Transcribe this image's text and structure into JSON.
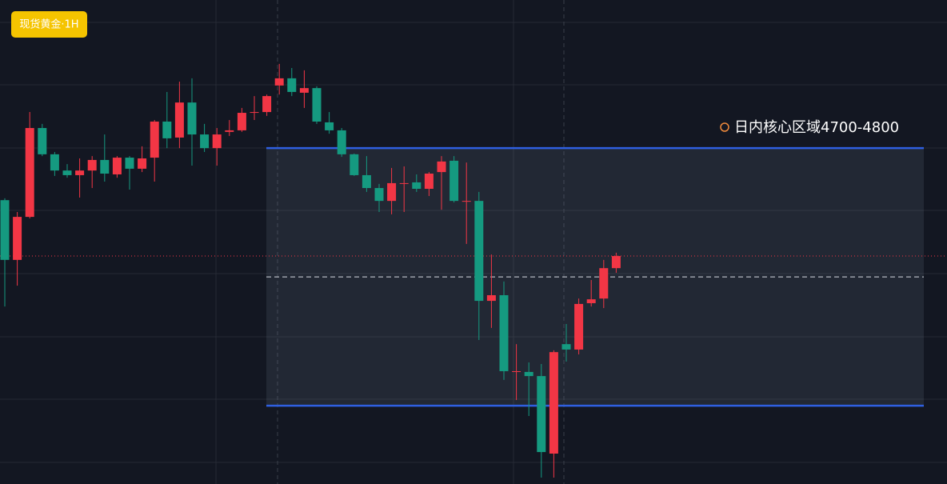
{
  "chart_data": {
    "type": "candlestick",
    "title": "现货黄金·1H",
    "annotation": "日内核心区域4700-4800",
    "ylim": [
      4669.6,
      4857.5
    ],
    "zone": [
      4700,
      4800
    ],
    "zone_line_color": "#2f5fe0",
    "midline": 4750,
    "last_price": 4758.1,
    "up_color": "#f23645",
    "down_color": "#159a80",
    "open": [
      4779.8,
      4756.6,
      4773.3,
      4807.8,
      4797.6,
      4791.3,
      4789.5,
      4791.3,
      4795.4,
      4789.8,
      4796.3,
      4792.0,
      4796.3,
      4810.3,
      4804.1,
      4817.7,
      4805.3,
      4800.0,
      4806.3,
      4806.9,
      4813.7,
      4814.0,
      4824.3,
      4827.1,
      4821.5,
      4823.3,
      4810.0,
      4806.9,
      4797.6,
      4789.5,
      4784.5,
      4779.5,
      4786.1,
      4786.7,
      4784.2,
      4790.7,
      4795.1,
      4779.2,
      4779.5,
      4740.7,
      4742.9,
      4713.1,
      4713.1,
      4711.5,
      4681.4,
      4723.9,
      4721.8,
      4739.8,
      4741.6,
      4753.4
    ],
    "high": [
      4780.5,
      4775.2,
      4814.0,
      4809.4,
      4798.5,
      4793.8,
      4796.0,
      4796.9,
      4805.3,
      4796.9,
      4796.9,
      4800.7,
      4810.9,
      4821.8,
      4825.8,
      4827.1,
      4809.4,
      4807.8,
      4810.9,
      4815.6,
      4820.2,
      4820.8,
      4832.7,
      4831.1,
      4830.2,
      4824.0,
      4814.0,
      4807.8,
      4797.9,
      4796.9,
      4786.1,
      4792.3,
      4792.9,
      4789.8,
      4790.7,
      4796.9,
      4796.9,
      4794.4,
      4783.0,
      4758.7,
      4748.2,
      4723.9,
      4716.8,
      4716.2,
      4721.5,
      4731.7,
      4741.6,
      4748.8,
      4756.6,
      4759.4
    ],
    "low": [
      4738.5,
      4746.6,
      4772.7,
      4796.9,
      4789.2,
      4788.5,
      4780.8,
      4784.5,
      4787.0,
      4788.5,
      4783.9,
      4790.7,
      4787.0,
      4800.0,
      4800.0,
      4793.2,
      4798.5,
      4793.2,
      4804.7,
      4806.3,
      4810.9,
      4812.5,
      4820.8,
      4820.2,
      4815.6,
      4809.4,
      4805.6,
      4796.6,
      4789.2,
      4783.0,
      4775.2,
      4774.3,
      4775.2,
      4783.0,
      4781.4,
      4776.1,
      4778.9,
      4762.8,
      4725.5,
      4730.2,
      4710.0,
      4702.2,
      4696.0,
      4672.1,
      4672.1,
      4717.1,
      4719.9,
      4738.5,
      4737.9,
      4751.6
    ],
    "close": [
      4756.6,
      4773.3,
      4807.8,
      4797.6,
      4791.3,
      4789.5,
      4791.3,
      4795.4,
      4790.1,
      4796.3,
      4792.0,
      4796.0,
      4810.3,
      4803.8,
      4817.7,
      4805.3,
      4800.0,
      4805.3,
      4806.9,
      4813.7,
      4814.0,
      4820.2,
      4827.1,
      4821.8,
      4823.3,
      4810.3,
      4806.9,
      4797.6,
      4789.5,
      4784.5,
      4779.5,
      4786.4,
      4786.4,
      4784.2,
      4790.1,
      4794.8,
      4779.5,
      4779.5,
      4740.7,
      4742.9,
      4713.4,
      4713.4,
      4711.5,
      4682.0,
      4720.8,
      4721.8,
      4739.5,
      4741.3,
      4753.4,
      4758.1
    ]
  }
}
